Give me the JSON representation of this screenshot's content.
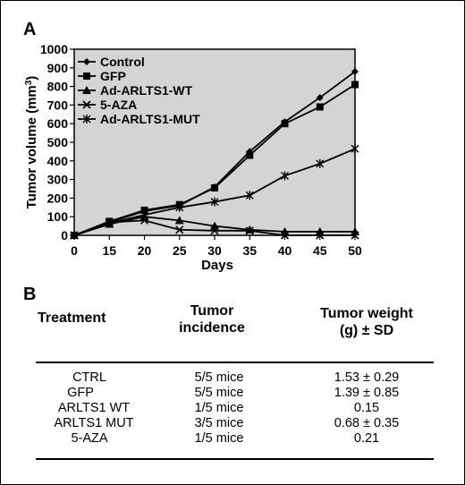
{
  "panel_a_label": "A",
  "panel_b_label": "B",
  "chart_data": {
    "type": "line",
    "xlabel": "Days",
    "ylabel": "Tumor volume (mm",
    "ylabel_sup": "3",
    "ylabel_close": ")",
    "x": [
      0,
      15,
      20,
      25,
      30,
      35,
      40,
      45,
      50
    ],
    "x_tick_labels": [
      "0",
      "15",
      "20",
      "25",
      "30",
      "35",
      "40",
      "45",
      "50"
    ],
    "y_ticks": [
      0,
      100,
      200,
      300,
      400,
      500,
      600,
      700,
      800,
      900,
      1000
    ],
    "ylim": [
      0,
      1000
    ],
    "grid": false,
    "legend_position": "top-left",
    "plot_background": "#d4d4d4",
    "series": [
      {
        "name": "Control",
        "marker": "diamond",
        "values": [
          0,
          70,
          130,
          160,
          260,
          450,
          610,
          740,
          880
        ]
      },
      {
        "name": "GFP",
        "marker": "square",
        "values": [
          0,
          75,
          135,
          165,
          255,
          430,
          600,
          690,
          810
        ]
      },
      {
        "name": "Ad-ARLTS1-WT",
        "marker": "triangle",
        "values": [
          0,
          60,
          100,
          80,
          50,
          30,
          20,
          20,
          20
        ]
      },
      {
        "name": "5-AZA",
        "marker": "x",
        "values": [
          0,
          70,
          80,
          30,
          25,
          25,
          0,
          0,
          0
        ]
      },
      {
        "name": "Ad-ARLTS1-MUT",
        "marker": "asterisk",
        "values": [
          0,
          65,
          110,
          150,
          180,
          215,
          320,
          385,
          465
        ]
      }
    ]
  },
  "table": {
    "headers": [
      {
        "lines": [
          "Treatment"
        ]
      },
      {
        "lines": [
          "Tumor",
          "incidence"
        ]
      },
      {
        "lines": [
          "Tumor weight",
          "(g) ± SD"
        ]
      }
    ],
    "rows": [
      {
        "treatment": "CTRL",
        "incidence": "5/5  mice",
        "weight": "1.53 ± 0.29"
      },
      {
        "treatment": "GFP",
        "incidence": "5/5 mice",
        "weight": "1.39 ± 0.85"
      },
      {
        "treatment": "ARLTS1 WT",
        "incidence": "1/5  mice",
        "weight": "0.15"
      },
      {
        "treatment": "ARLTS1 MUT",
        "incidence": "3/5  mice",
        "weight": "0.68 ± 0.35"
      },
      {
        "treatment": "5-AZA",
        "incidence": "1/5  mice",
        "weight": "0.21"
      }
    ]
  }
}
